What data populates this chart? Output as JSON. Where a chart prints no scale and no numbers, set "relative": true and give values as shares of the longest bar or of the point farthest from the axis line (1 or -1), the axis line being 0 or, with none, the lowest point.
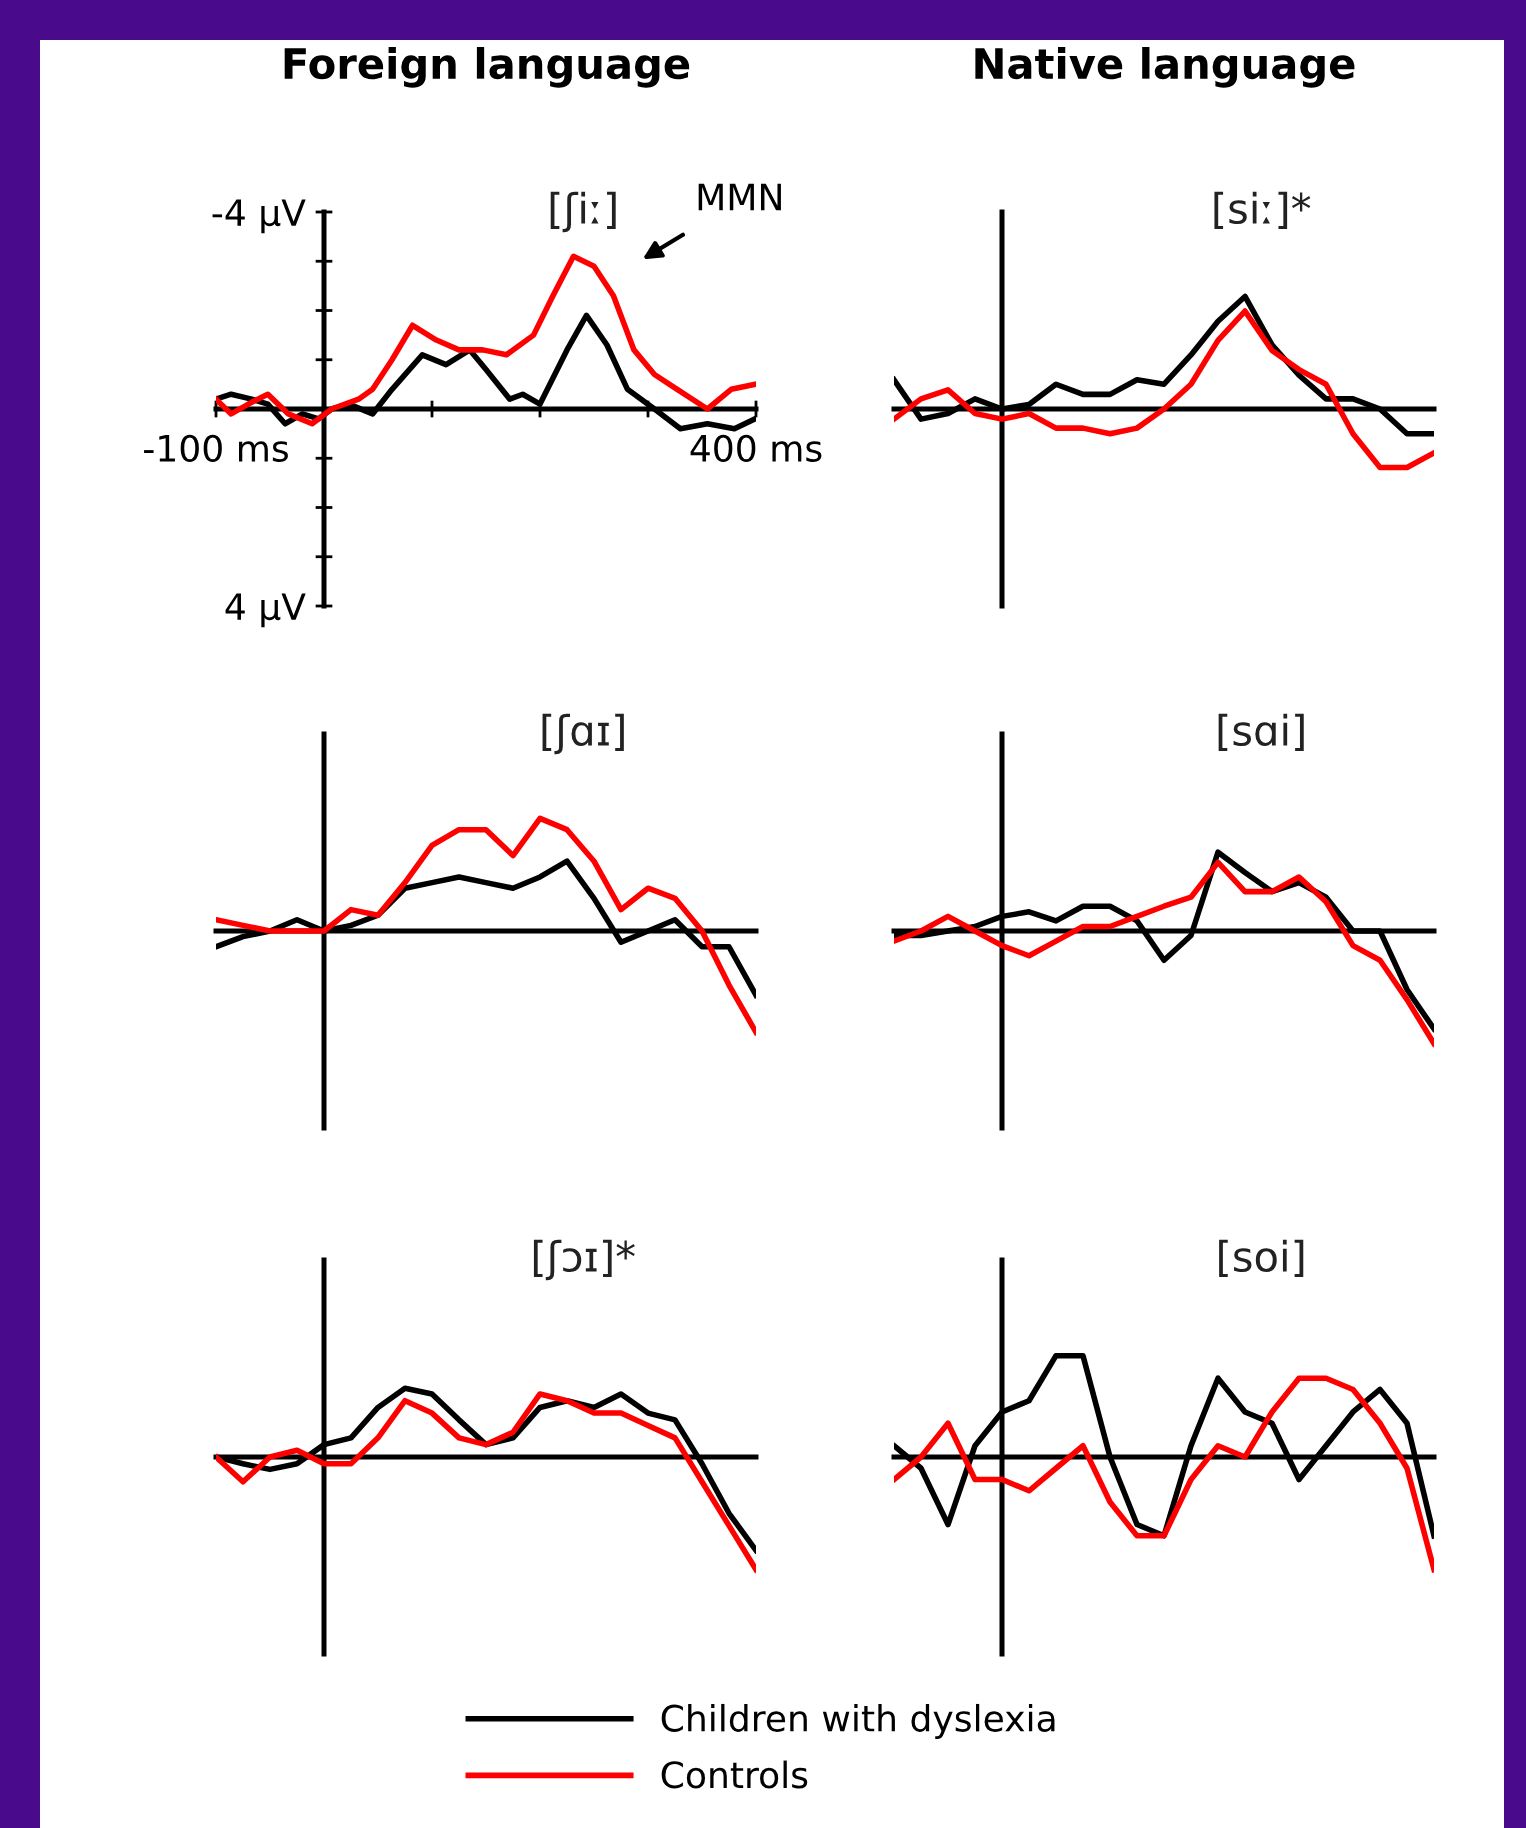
{
  "chart_data": [
    {
      "type": "line",
      "title": "Foreign language",
      "subtitle": "[ʃiː]",
      "xlim": [
        -100,
        400
      ],
      "ylim": [
        4,
        -4
      ],
      "xticks": [
        {
          "value": -100,
          "label": "-100 ms"
        },
        {
          "value": 0,
          "label": null
        },
        {
          "value": 100,
          "label": null
        },
        {
          "value": 200,
          "label": null
        },
        {
          "value": 300,
          "label": null
        },
        {
          "value": 400,
          "label": "400 ms"
        }
      ],
      "yticks": [
        {
          "value": -4,
          "label": "-4 µV"
        },
        {
          "value": -3,
          "label": null
        },
        {
          "value": -2,
          "label": null
        },
        {
          "value": -1,
          "label": null
        },
        {
          "value": 0,
          "label": null
        },
        {
          "value": 1,
          "label": null
        },
        {
          "value": 2,
          "label": null
        },
        {
          "value": 3,
          "label": null
        },
        {
          "value": 4,
          "label": "4 µV"
        }
      ],
      "annotations": [
        "MMN"
      ],
      "legend": "bottom",
      "series": [
        {
          "name": "Children with dyslexia",
          "color": "#000000",
          "x": [
            -100,
            -86,
            -67,
            -52,
            -36,
            -20,
            -5,
            7,
            23,
            45,
            63,
            91,
            113,
            135,
            150,
            172,
            184,
            200,
            225,
            243,
            262,
            281,
            306,
            330,
            355,
            380,
            399
          ],
          "values": [
            -0.2,
            -0.3,
            -0.2,
            -0.1,
            0.3,
            0.1,
            0.2,
            0.0,
            -0.1,
            0.1,
            -0.4,
            -1.1,
            -0.9,
            -1.2,
            -0.8,
            -0.2,
            -0.3,
            -0.1,
            -1.2,
            -1.9,
            -1.3,
            -0.4,
            0.0,
            0.4,
            0.3,
            0.4,
            0.2
          ]
        },
        {
          "name": "Controls",
          "color": "#ff0000",
          "x": [
            -100,
            -86,
            -70,
            -52,
            -33,
            -11,
            7,
            32,
            45,
            63,
            82,
            104,
            125,
            147,
            169,
            194,
            212,
            231,
            250,
            268,
            287,
            306,
            327,
            355,
            377,
            399
          ],
          "values": [
            -0.2,
            0.1,
            -0.1,
            -0.3,
            0.1,
            0.3,
            0.0,
            -0.2,
            -0.4,
            -1.0,
            -1.7,
            -1.4,
            -1.2,
            -1.2,
            -1.1,
            -1.5,
            -2.3,
            -3.1,
            -2.9,
            -2.3,
            -1.2,
            -0.7,
            -0.4,
            0.0,
            -0.4,
            -0.5
          ]
        }
      ]
    },
    {
      "type": "line",
      "title": "Native language",
      "subtitle": "[siː]*",
      "relative": true,
      "categories": [
        null,
        null,
        null,
        null,
        null,
        null,
        null,
        null,
        null,
        null,
        null,
        null,
        null,
        null,
        null,
        null,
        null,
        null,
        null,
        null,
        null
      ],
      "series": [
        {
          "color": "#000000",
          "values": [
            0.26,
            -0.09,
            -0.04,
            0.09,
            0,
            0.04,
            0.22,
            0.13,
            0.13,
            0.26,
            0.22,
            0.48,
            0.78,
            1,
            0.57,
            0.3,
            0.09,
            0.09,
            0,
            -0.22,
            -0.22
          ]
        },
        {
          "color": "#ff0000",
          "values": [
            -0.09,
            0.09,
            0.17,
            -0.04,
            -0.09,
            -0.04,
            -0.17,
            -0.17,
            -0.22,
            -0.17,
            0,
            0.22,
            0.61,
            0.87,
            0.52,
            0.35,
            0.22,
            -0.22,
            -0.52,
            -0.52,
            -0.39
          ]
        }
      ]
    },
    {
      "type": "line",
      "subtitle": "[ʃɑɪ]",
      "relative": true,
      "categories": [
        null,
        null,
        null,
        null,
        null,
        null,
        null,
        null,
        null,
        null,
        null,
        null,
        null,
        null,
        null,
        null,
        null,
        null,
        null,
        null,
        null
      ],
      "series": [
        {
          "color": "#000000",
          "values": [
            -0.14,
            -0.05,
            0,
            0.1,
            0,
            0.05,
            0.14,
            0.38,
            0.43,
            0.48,
            0.43,
            0.38,
            0.48,
            0.62,
            0.29,
            -0.1,
            0,
            0.1,
            -0.14,
            -0.14,
            -0.57
          ]
        },
        {
          "color": "#ff0000",
          "values": [
            0.1,
            0.05,
            0,
            0,
            0,
            0.19,
            0.14,
            0.43,
            0.76,
            0.9,
            0.9,
            0.67,
            1,
            0.9,
            0.62,
            0.19,
            0.38,
            0.29,
            0,
            -0.48,
            -0.9
          ]
        }
      ]
    },
    {
      "type": "line",
      "subtitle": "[sɑi]",
      "relative": true,
      "categories": [
        null,
        null,
        null,
        null,
        null,
        null,
        null,
        null,
        null,
        null,
        null,
        null,
        null,
        null,
        null,
        null,
        null,
        null,
        null,
        null,
        null
      ],
      "series": [
        {
          "color": "#000000",
          "values": [
            -0.04,
            -0.04,
            0,
            0.04,
            0.13,
            0.17,
            0.09,
            0.22,
            0.22,
            0.09,
            -0.26,
            -0.04,
            0.7,
            0.52,
            0.35,
            0.43,
            0.3,
            0,
            0,
            -0.52,
            -0.87
          ]
        },
        {
          "color": "#ff0000",
          "values": [
            -0.09,
            0,
            0.13,
            0,
            -0.13,
            -0.22,
            -0.09,
            0.04,
            0.04,
            0.13,
            0.22,
            0.3,
            0.61,
            0.35,
            0.35,
            0.48,
            0.26,
            -0.13,
            -0.26,
            -0.61,
            -1
          ]
        }
      ]
    },
    {
      "type": "line",
      "subtitle": "[ʃɔɪ]*",
      "relative": true,
      "categories": [
        null,
        null,
        null,
        null,
        null,
        null,
        null,
        null,
        null,
        null,
        null,
        null,
        null,
        null,
        null,
        null,
        null,
        null,
        null,
        null,
        null
      ],
      "series": [
        {
          "color": "#000000",
          "values": [
            0,
            -0.06,
            -0.11,
            -0.06,
            0.11,
            0.17,
            0.44,
            0.61,
            0.56,
            0.33,
            0.11,
            0.17,
            0.44,
            0.5,
            0.44,
            0.56,
            0.39,
            0.33,
            -0.06,
            -0.5,
            -0.83
          ]
        },
        {
          "color": "#ff0000",
          "values": [
            0,
            -0.22,
            0,
            0.06,
            -0.06,
            -0.06,
            0.17,
            0.5,
            0.39,
            0.17,
            0.11,
            0.22,
            0.56,
            0.5,
            0.39,
            0.39,
            0.28,
            0.17,
            -0.22,
            -0.61,
            -1
          ]
        }
      ]
    },
    {
      "type": "line",
      "subtitle": "[soi]",
      "relative": true,
      "categories": [
        null,
        null,
        null,
        null,
        null,
        null,
        null,
        null,
        null,
        null,
        null,
        null,
        null,
        null,
        null,
        null,
        null,
        null,
        null,
        null,
        null
      ],
      "series": [
        {
          "color": "#000000",
          "values": [
            0.1,
            -0.1,
            -0.6,
            0.1,
            0.4,
            0.5,
            0.9,
            0.9,
            0,
            -0.6,
            -0.7,
            0.1,
            0.7,
            0.4,
            0.3,
            -0.2,
            0.1,
            0.4,
            0.6,
            0.3,
            -0.7
          ]
        },
        {
          "color": "#ff0000",
          "values": [
            -0.2,
            0,
            0.3,
            -0.2,
            -0.2,
            -0.3,
            -0.1,
            0.1,
            -0.4,
            -0.7,
            -0.7,
            -0.2,
            0.1,
            0,
            0.4,
            0.7,
            0.7,
            0.6,
            0.3,
            -0.1,
            -1
          ]
        }
      ]
    }
  ]
}
